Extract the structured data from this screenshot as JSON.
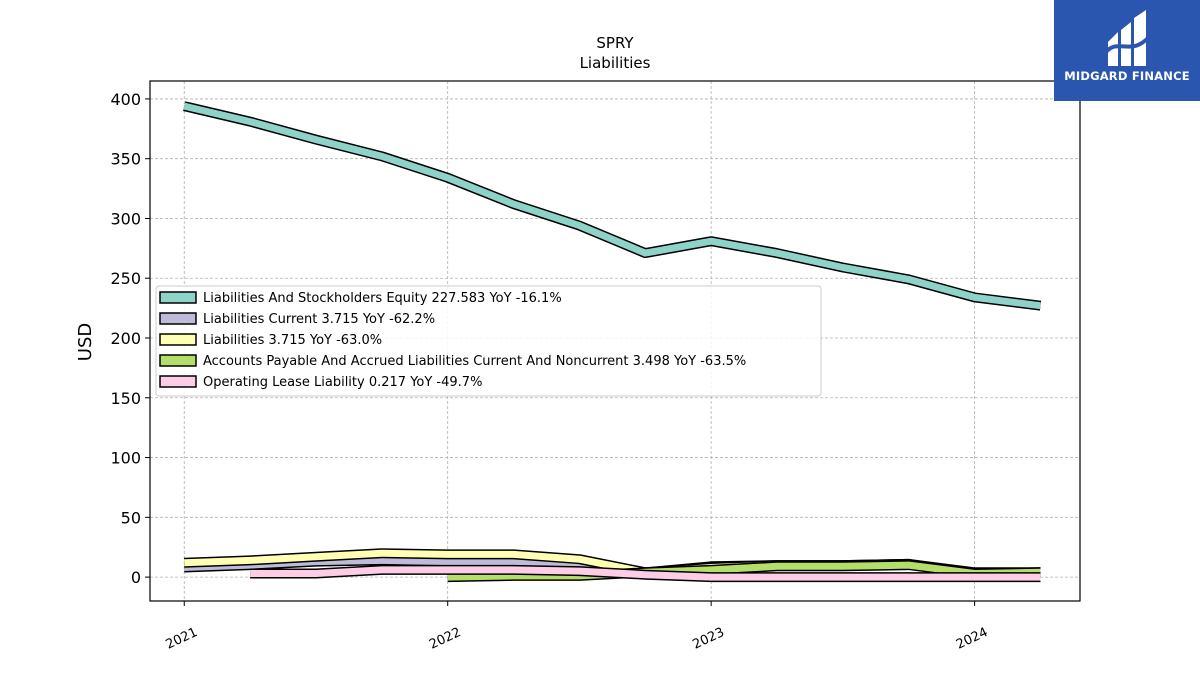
{
  "chart_data": {
    "type": "line",
    "title": "SPRY",
    "subtitle": "Liabilities",
    "ylabel": "USD",
    "xlabel": "",
    "ylim": [
      -20,
      415
    ],
    "xlim": [
      2020.87,
      2024.4
    ],
    "x_ticks": [
      2021,
      2022,
      2023,
      2024
    ],
    "x_tick_labels": [
      "2021",
      "2022",
      "2023",
      "2024"
    ],
    "y_ticks": [
      0,
      50,
      100,
      150,
      200,
      250,
      300,
      350,
      400
    ],
    "y_tick_labels": [
      "0",
      "50",
      "100",
      "150",
      "200",
      "250",
      "300",
      "350",
      "400"
    ],
    "grid": true,
    "legend_position": "center-left",
    "series": [
      {
        "name": "Liabilities And Stockholders Equity",
        "legend": "Liabilities And Stockholders Equity  227.583 YoY -16.1%",
        "color": "#8dd3c7",
        "x": [
          2021.0,
          2021.25,
          2021.5,
          2021.75,
          2022.0,
          2022.25,
          2022.5,
          2022.75,
          2023.0,
          2023.25,
          2023.5,
          2023.75,
          2024.0,
          2024.25
        ],
        "y": [
          394,
          381,
          366,
          352,
          334,
          312,
          294,
          271,
          281,
          271,
          259,
          249,
          234,
          227
        ]
      },
      {
        "name": "Liabilities Current",
        "legend": "Liabilities Current  3.715 YoY -62.2%",
        "color": "#bebada",
        "x": [
          2021.0,
          2021.25,
          2021.5,
          2021.75,
          2022.0,
          2022.25,
          2022.5,
          2022.75,
          2023.0,
          2023.25,
          2023.5,
          2023.75,
          2024.0,
          2024.25
        ],
        "y": [
          8,
          10,
          13,
          14,
          13,
          13,
          10,
          4,
          9,
          10,
          10,
          11,
          4,
          4
        ]
      },
      {
        "name": "Liabilities",
        "legend": "Liabilities  3.715 YoY -63.0%",
        "color": "#ffffb3",
        "x": [
          2021.0,
          2021.25,
          2021.5,
          2021.75,
          2022.0,
          2022.25,
          2022.5,
          2022.75,
          2023.0,
          2023.25,
          2023.5,
          2023.75,
          2024.0,
          2024.25
        ],
        "y": [
          12,
          14,
          17,
          20,
          19,
          19,
          15,
          4,
          8,
          10,
          10,
          11,
          3,
          4
        ]
      },
      {
        "name": "Accounts Payable And Accrued Liabilities Current And Noncurrent",
        "legend": "Accounts Payable And Accrued Liabilities Current And Noncurrent  3.498 YoY -63.5%",
        "color": "#b3de69",
        "x": [
          2022.0,
          2022.25,
          2022.5,
          2022.75,
          2023.0,
          2023.25,
          2023.5,
          2023.75,
          2024.0,
          2024.25
        ],
        "y": [
          0,
          1,
          1,
          4,
          6,
          9,
          9,
          10,
          3,
          4
        ]
      },
      {
        "name": "Operating Lease Liability",
        "legend": "Operating Lease Liability  0.217 YoY -49.7%",
        "color": "#fccde5",
        "x": [
          2021.25,
          2021.5,
          2021.75,
          2022.0,
          2022.25,
          2022.5,
          2022.75,
          2023.0,
          2023.25,
          2023.5,
          2023.75,
          2024.0,
          2024.25
        ],
        "y": [
          3,
          3,
          6,
          6,
          6,
          5,
          2,
          0,
          0,
          0,
          0,
          0,
          0
        ]
      }
    ]
  },
  "logo": {
    "text": "MIDGARD FINANCE",
    "background": "#2a56b0"
  }
}
